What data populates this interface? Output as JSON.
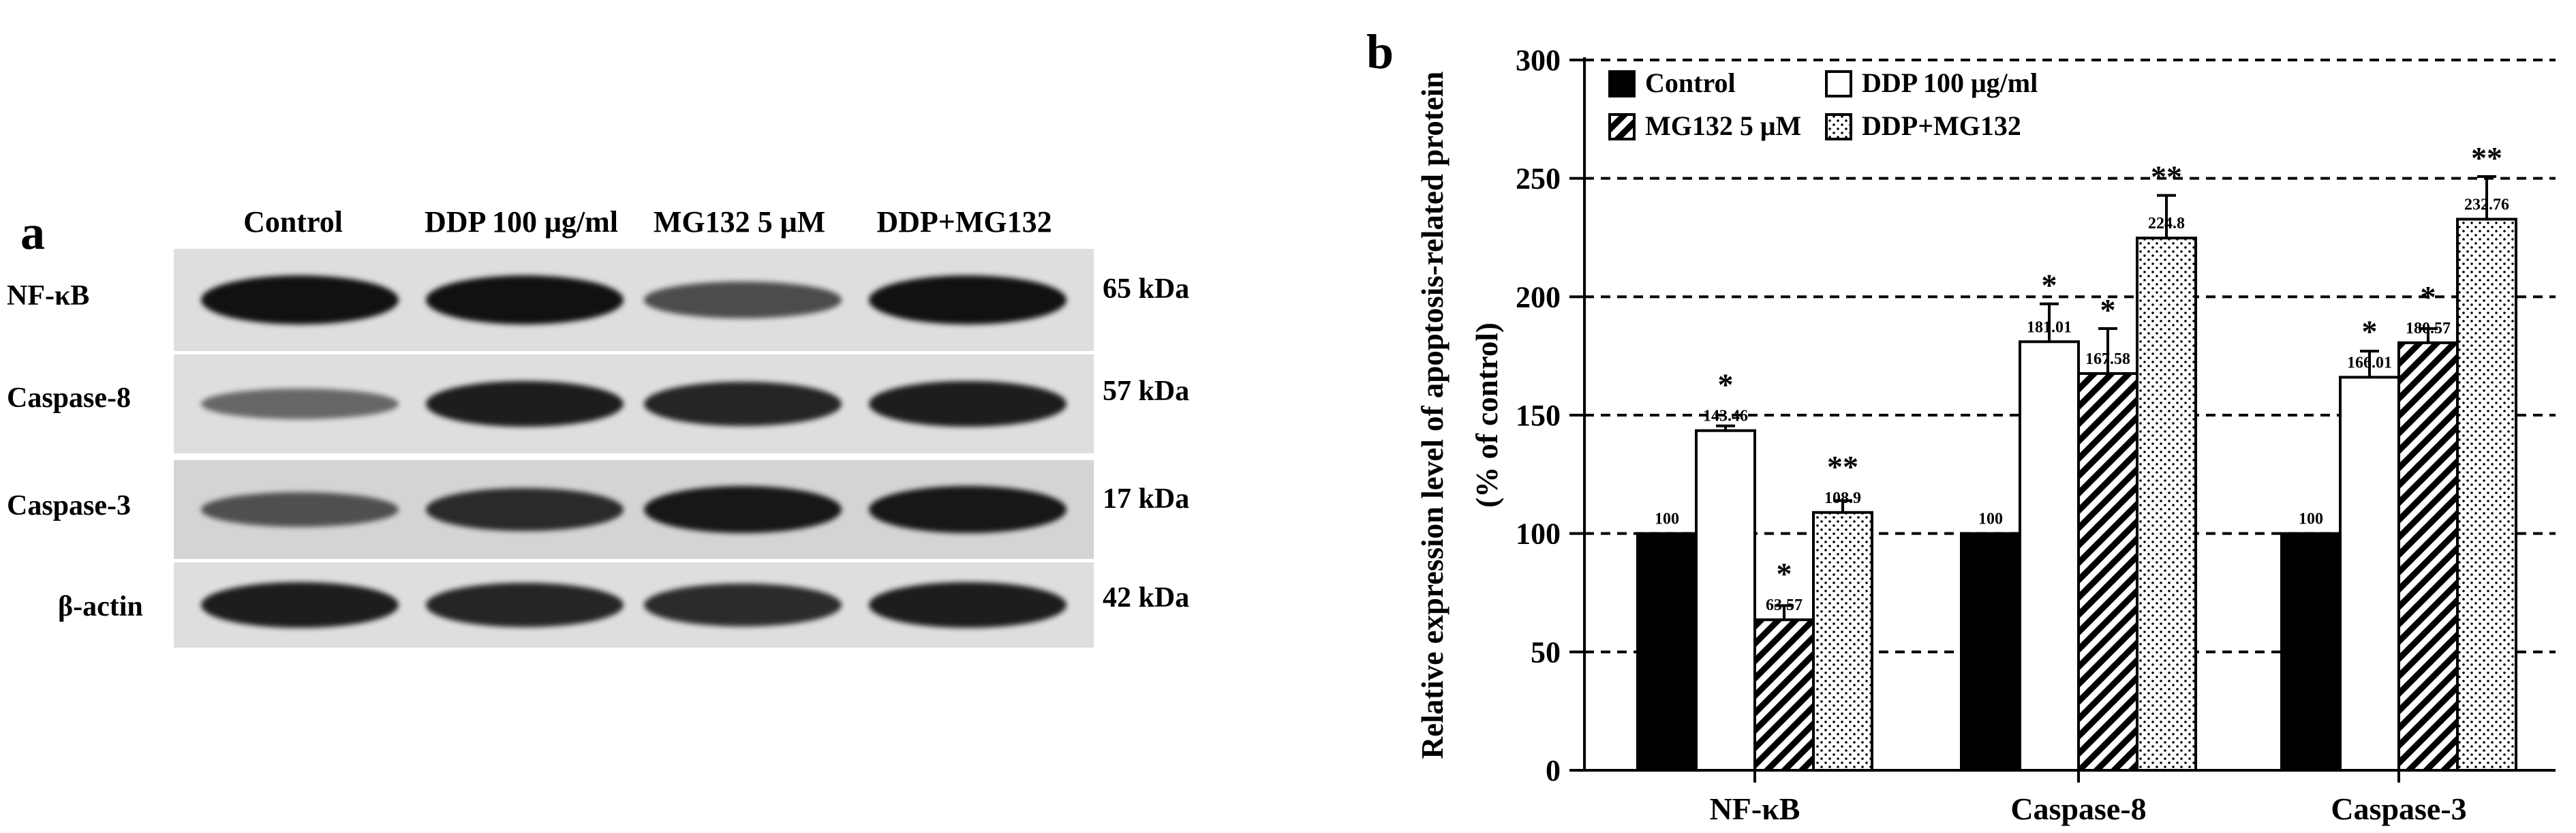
{
  "panel_a": {
    "letter": "a",
    "lanes": [
      "Control",
      "DDP 100 μg/ml",
      "MG132 5 μM",
      "DDP+MG132"
    ],
    "rows": [
      {
        "label": "NF-κB",
        "kda": "65 kDa",
        "intensity": [
          1.0,
          1.0,
          0.55,
          1.0
        ]
      },
      {
        "label": "Caspase-8",
        "kda": "57 kDa",
        "intensity": [
          0.35,
          0.9,
          0.85,
          0.9
        ]
      },
      {
        "label": "Caspase-3",
        "kda": "17 kDa",
        "intensity": [
          0.5,
          0.8,
          0.95,
          0.95
        ]
      },
      {
        "label": "β-actin",
        "kda": "42 kDa",
        "intensity": [
          0.9,
          0.85,
          0.8,
          0.9
        ]
      }
    ]
  },
  "panel_b": {
    "letter": "b"
  },
  "colors": {
    "control": "#000000",
    "ddp": "#ffffff",
    "grid": "#000000"
  },
  "chart_data": {
    "type": "bar",
    "categories": [
      "NF-κB",
      "Caspase-8",
      "Caspase-3"
    ],
    "series": [
      {
        "name": "Control",
        "pattern": "solid",
        "values": [
          100,
          100,
          100
        ],
        "labels": [
          "100",
          "100",
          "100"
        ],
        "errors": [
          0,
          0,
          0
        ],
        "sig": [
          "",
          "",
          ""
        ]
      },
      {
        "name": "DDP 100 μg/ml",
        "pattern": "white",
        "values": [
          143.46,
          181.01,
          166.01
        ],
        "labels": [
          "143.46",
          "181.01",
          "166.01"
        ],
        "errors": [
          2,
          16,
          11
        ],
        "sig": [
          "*",
          "*",
          "*"
        ]
      },
      {
        "name": "MG132 5 μM",
        "pattern": "hatch",
        "values": [
          63.57,
          167.58,
          180.57
        ],
        "labels": [
          "63.57",
          "167.58",
          "180.57"
        ],
        "errors": [
          6,
          19,
          6
        ],
        "sig": [
          "*",
          "*",
          "*"
        ]
      },
      {
        "name": "DDP+MG132",
        "pattern": "dots",
        "values": [
          108.9,
          224.8,
          232.76
        ],
        "labels": [
          "108.9",
          "224.8",
          "232.76"
        ],
        "errors": [
          5,
          18,
          18
        ],
        "sig": [
          "**",
          "**",
          "**"
        ]
      }
    ],
    "ylabel": "Relative expression level of apoptosis-related protein",
    "ylabel2": "(% of control)",
    "xlabel": "",
    "ylim": [
      0,
      300
    ],
    "yticks": [
      0,
      50,
      100,
      150,
      200,
      250,
      300
    ],
    "grid": "dashed horizontal",
    "legend_position": "top-left"
  }
}
